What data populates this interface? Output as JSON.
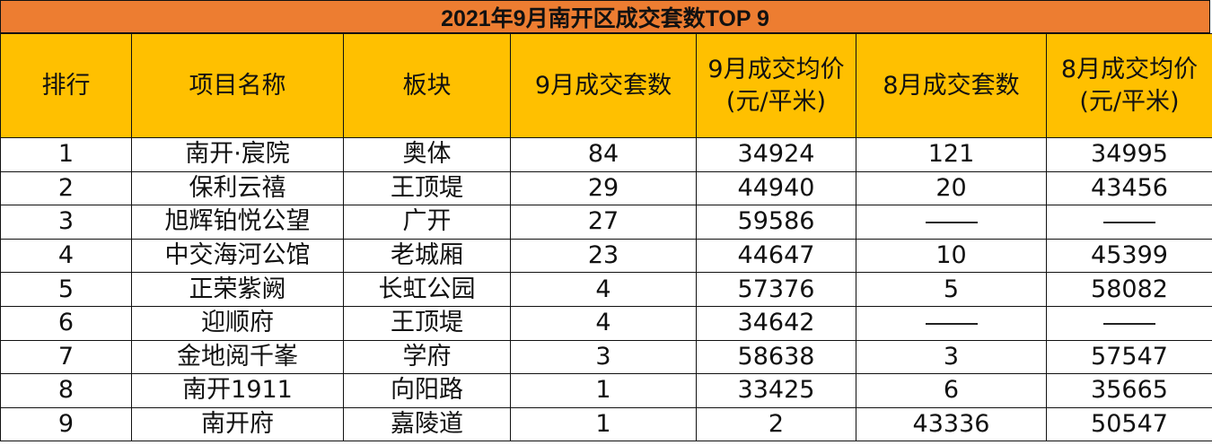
{
  "title": "2021年9月南开区成交套数TOP 9",
  "headers": {
    "rank": "排行",
    "project": "项目名称",
    "district": "板块",
    "sep_units": "9月成交套数",
    "sep_price_l1": "9月成交均价",
    "sep_price_l2": "(元/平米)",
    "aug_units": "8月成交套数",
    "aug_price_l1": "8月成交均价",
    "aug_price_l2": "(元/平米)"
  },
  "rows": [
    {
      "rank": "1",
      "project": "南开·宸院",
      "district": "奥体",
      "sep_units": "84",
      "sep_price": "34924",
      "aug_units": "121",
      "aug_price": "34995"
    },
    {
      "rank": "2",
      "project": "保利云禧",
      "district": "王顶堤",
      "sep_units": "29",
      "sep_price": "44940",
      "aug_units": "20",
      "aug_price": "43456"
    },
    {
      "rank": "3",
      "project": "旭辉铂悦公望",
      "district": "广开",
      "sep_units": "27",
      "sep_price": "59586",
      "aug_units": "——",
      "aug_price": "——"
    },
    {
      "rank": "4",
      "project": "中交海河公馆",
      "district": "老城厢",
      "sep_units": "23",
      "sep_price": "44647",
      "aug_units": "10",
      "aug_price": "45399"
    },
    {
      "rank": "5",
      "project": "正荣紫阙",
      "district": "长虹公园",
      "sep_units": "4",
      "sep_price": "57376",
      "aug_units": "5",
      "aug_price": "58082"
    },
    {
      "rank": "6",
      "project": "迎顺府",
      "district": "王顶堤",
      "sep_units": "4",
      "sep_price": "34642",
      "aug_units": "——",
      "aug_price": "——"
    },
    {
      "rank": "7",
      "project": "金地阅千峯",
      "district": "学府",
      "sep_units": "3",
      "sep_price": "58638",
      "aug_units": "3",
      "aug_price": "57547"
    },
    {
      "rank": "8",
      "project": "南开1911",
      "district": "向阳路",
      "sep_units": "1",
      "sep_price": "33425",
      "aug_units": "6",
      "aug_price": "35665"
    },
    {
      "rank": "9",
      "project": "南开府",
      "district": "嘉陵道",
      "sep_units": "1",
      "sep_price": "2",
      "aug_units": "43336",
      "aug_price": "50547"
    }
  ],
  "colors": {
    "title_bg": "#ed7d31",
    "header_bg": "#ffc000",
    "body_bg": "#ffffff",
    "grid": "#111111"
  }
}
